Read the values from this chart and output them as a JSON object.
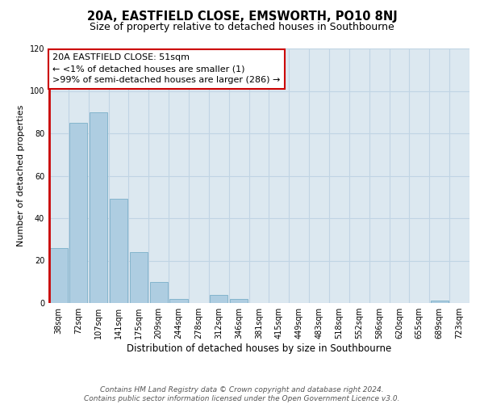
{
  "title": "20A, EASTFIELD CLOSE, EMSWORTH, PO10 8NJ",
  "subtitle": "Size of property relative to detached houses in Southbourne",
  "xlabel": "Distribution of detached houses by size in Southbourne",
  "ylabel": "Number of detached properties",
  "bar_labels": [
    "38sqm",
    "72sqm",
    "107sqm",
    "141sqm",
    "175sqm",
    "209sqm",
    "244sqm",
    "278sqm",
    "312sqm",
    "346sqm",
    "381sqm",
    "415sqm",
    "449sqm",
    "483sqm",
    "518sqm",
    "552sqm",
    "586sqm",
    "620sqm",
    "655sqm",
    "689sqm",
    "723sqm"
  ],
  "bar_values": [
    26,
    85,
    90,
    49,
    24,
    10,
    2,
    0,
    4,
    2,
    0,
    0,
    0,
    0,
    0,
    0,
    0,
    0,
    0,
    1,
    0
  ],
  "bar_color": "#aecde1",
  "bar_edge_color": "#7bafc8",
  "highlight_bar_index": 0,
  "highlight_bar_edge_color": "#cc0000",
  "annotation_line1": "20A EASTFIELD CLOSE: 51sqm",
  "annotation_line2": "← <1% of detached houses are smaller (1)",
  "annotation_line3": ">99% of semi-detached houses are larger (286) →",
  "red_line_x": -0.5,
  "ylim": [
    0,
    120
  ],
  "yticks": [
    0,
    20,
    40,
    60,
    80,
    100,
    120
  ],
  "grid_color": "#c0d4e4",
  "background_color": "#dce8f0",
  "footer_text": "Contains HM Land Registry data © Crown copyright and database right 2024.\nContains public sector information licensed under the Open Government Licence v3.0.",
  "title_fontsize": 10.5,
  "subtitle_fontsize": 9,
  "xlabel_fontsize": 8.5,
  "ylabel_fontsize": 8,
  "tick_fontsize": 7,
  "annotation_fontsize": 8,
  "footer_fontsize": 6.5
}
